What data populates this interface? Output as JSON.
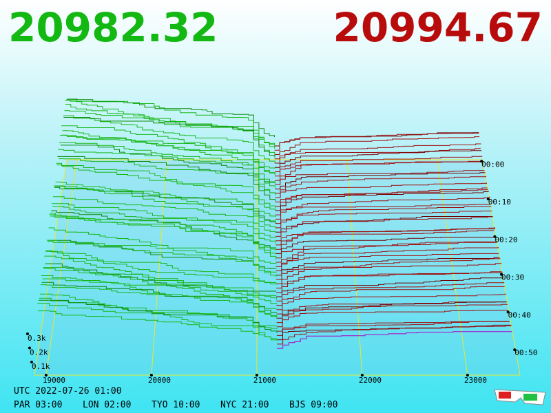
{
  "header": {
    "bid": "20982.32",
    "ask": "20994.67"
  },
  "price_axis": [
    "19000",
    "20000",
    "21000",
    "22000",
    "23000"
  ],
  "time_axis": [
    "00:00",
    "00:10",
    "00:20",
    "00:30",
    "00:40",
    "00:50"
  ],
  "depth_axis": [
    "0.3k",
    "0.2k",
    "0.1k"
  ],
  "footer": {
    "timestamp": "UTC 2022-07-26 01:00",
    "zones": [
      "PAR 03:00",
      "LON 02:00",
      "TYO 10:00",
      "NYC 21:00",
      "BJS 09:00"
    ]
  }
}
